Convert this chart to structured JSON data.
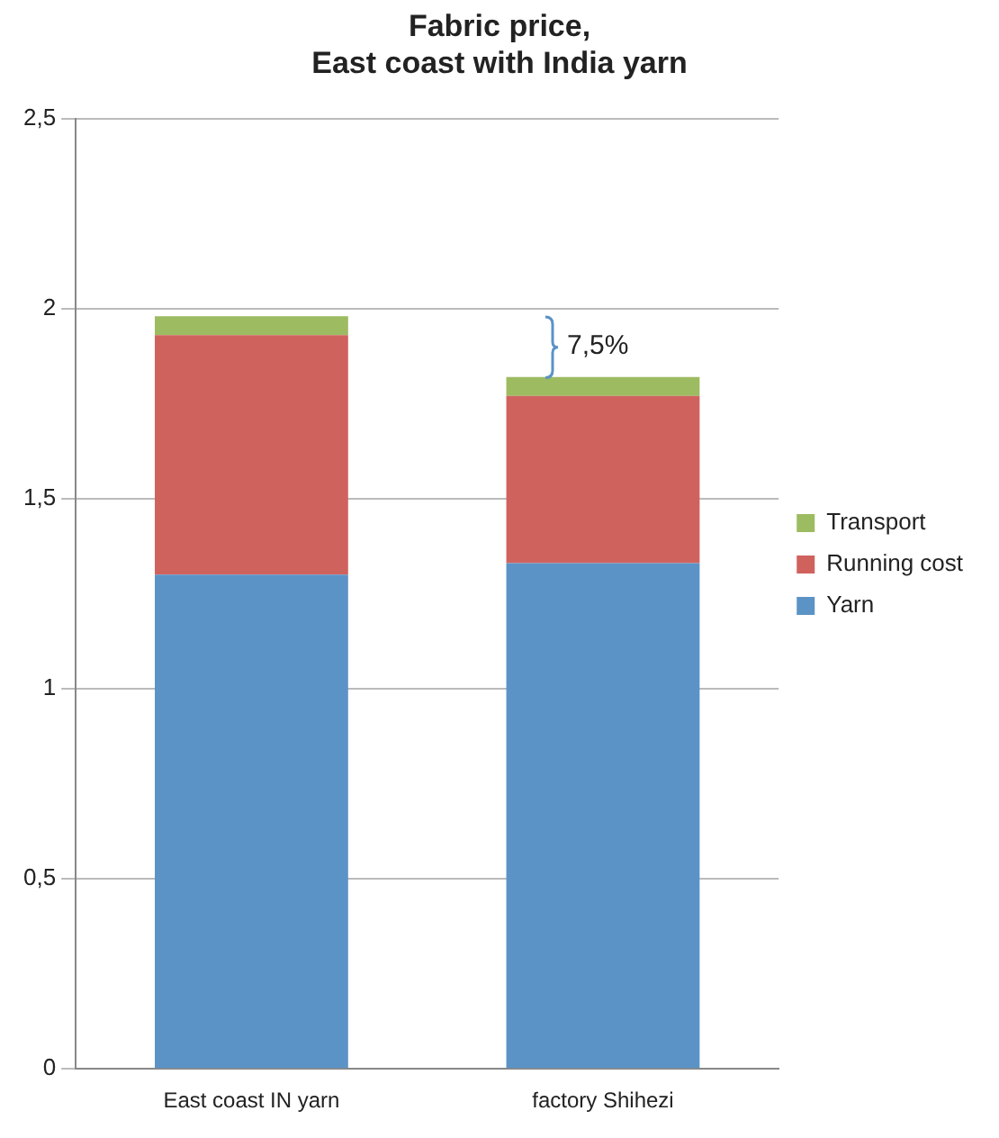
{
  "chart_data": {
    "type": "bar",
    "title": "Fabric price,\nEast coast with India yarn",
    "categories": [
      "East coast IN yarn",
      "factory Shihezi"
    ],
    "stacked": true,
    "series": [
      {
        "name": "Yarn",
        "color": "#5b93c6",
        "values": [
          1.3,
          1.33
        ]
      },
      {
        "name": "Running cost",
        "color": "#d0625e",
        "values": [
          0.63,
          0.44
        ]
      },
      {
        "name": "Transport",
        "color": "#9dbb61",
        "values": [
          0.05,
          0.05
        ]
      }
    ],
    "ylim": [
      0,
      2.5
    ],
    "yticks": [
      0,
      {
        "value": 0.5,
        "label": "0,5"
      },
      1,
      {
        "value": 1.5,
        "label": "1,5"
      },
      2,
      {
        "value": 2.5,
        "label": "2,5"
      }
    ],
    "grid": "y",
    "legend": "right",
    "annotations": [
      "7,5%"
    ]
  }
}
